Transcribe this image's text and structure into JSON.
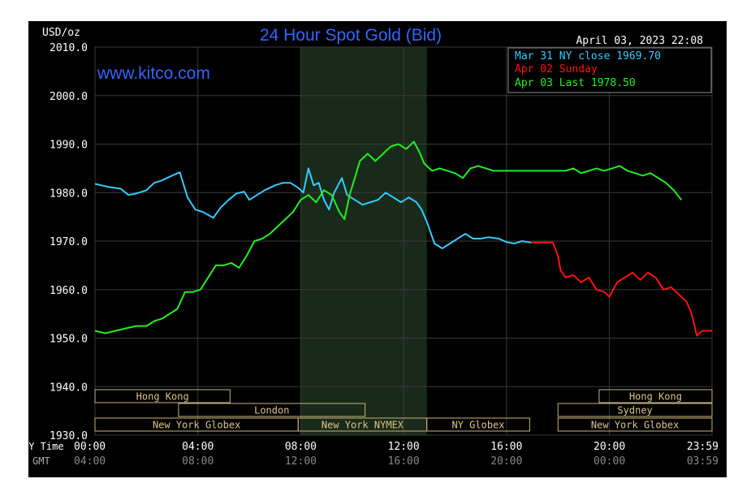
{
  "chart_data": {
    "type": "line",
    "title": "24 Hour Spot Gold (Bid)",
    "timestamp": "April 03, 2023 22:08",
    "watermark": "www.kitco.com",
    "ylabel": "USD/oz",
    "ylim": [
      1930,
      2010
    ],
    "y_ticks": [
      "2010.0",
      "2000.0",
      "1990.0",
      "1980.0",
      "1970.0",
      "1960.0",
      "1950.0",
      "1940.0",
      "1930.0"
    ],
    "x_row_label": "NY Time",
    "x_ticks": [
      "00:00",
      "04:00",
      "08:00",
      "12:00",
      "16:00",
      "20:00",
      "23:59"
    ],
    "gmt_row_label": "GMT",
    "gmt_ticks": [
      "04:00",
      "08:00",
      "12:00",
      "16:00",
      "20:00",
      "00:00",
      "03:59"
    ],
    "legend": [
      {
        "text": "Mar 31 NY close 1969.70",
        "color": "#33ccff"
      },
      {
        "text": "Apr 02 Sunday",
        "color": "#ff1111"
      },
      {
        "text": "Apr 03 Last 1978.50",
        "color": "#22ee22"
      }
    ],
    "sessions": [
      {
        "label": "Hong Kong",
        "row": 0,
        "start": 0,
        "end": 5.25
      },
      {
        "label": "Hong Kong",
        "row": 0,
        "start": 19.6,
        "end": 23.99
      },
      {
        "label": "London",
        "row": 1,
        "start": 3.25,
        "end": 10.5
      },
      {
        "label": "Sydney",
        "row": 1,
        "start": 18.0,
        "end": 23.99
      },
      {
        "label": "New York Globex",
        "row": 2,
        "start": 0,
        "end": 7.9
      },
      {
        "label": "New York NYMEX",
        "row": 2,
        "start": 7.9,
        "end": 12.9
      },
      {
        "label": "NY Globex",
        "row": 2,
        "start": 12.9,
        "end": 16.9
      },
      {
        "label": "New York Globex",
        "row": 2,
        "start": 18.0,
        "end": 23.99
      }
    ],
    "highlight": {
      "start": 8.0,
      "end": 12.9
    },
    "series": [
      {
        "name": "Mar 31 NY close 1969.70",
        "color": "#33ccff",
        "x": [
          0,
          0.5,
          1,
          1.3,
          1.6,
          2,
          2.3,
          2.6,
          3,
          3.3,
          3.6,
          3.9,
          4.2,
          4.6,
          4.9,
          5.2,
          5.5,
          5.8,
          6,
          6.3,
          6.6,
          7,
          7.3,
          7.6,
          7.9,
          8.1,
          8.3,
          8.5,
          8.7,
          8.9,
          9.1,
          9.3,
          9.6,
          9.8,
          10.1,
          10.4,
          10.7,
          11,
          11.3,
          11.6,
          11.9,
          12.2,
          12.5,
          12.7,
          12.9,
          13.2,
          13.5,
          13.8,
          14.1,
          14.4,
          14.7,
          15,
          15.3,
          15.7,
          16,
          16.3,
          16.6,
          16.95
        ],
        "y": [
          1981.8,
          1981.2,
          1980.8,
          1979.5,
          1979.8,
          1980.5,
          1982.0,
          1982.5,
          1983.5,
          1984.2,
          1979.0,
          1976.5,
          1976.0,
          1974.8,
          1977.0,
          1978.5,
          1979.8,
          1980.2,
          1978.5,
          1979.5,
          1980.5,
          1981.5,
          1982.0,
          1982.0,
          1981.0,
          1980.0,
          1985.0,
          1981.5,
          1982.0,
          1978.5,
          1976.5,
          1980.0,
          1983.0,
          1979.5,
          1978.5,
          1977.5,
          1978.0,
          1978.5,
          1980.0,
          1979.0,
          1978.0,
          1979.0,
          1978.0,
          1976.5,
          1974.0,
          1969.5,
          1968.5,
          1969.5,
          1970.5,
          1971.5,
          1970.5,
          1970.5,
          1970.8,
          1970.5,
          1969.8,
          1969.5,
          1970.0,
          1969.7
        ]
      },
      {
        "name": "Apr 02 Sunday",
        "color": "#ff1111",
        "x": [
          16.95,
          17.8,
          18.0,
          18.1,
          18.3,
          18.6,
          18.9,
          19.2,
          19.5,
          19.8,
          20.0,
          20.3,
          20.6,
          20.9,
          21.2,
          21.5,
          21.8,
          22.1,
          22.4,
          22.7,
          23.0,
          23.2,
          23.4,
          23.6,
          23.99
        ],
        "y": [
          1969.7,
          1969.7,
          1967.0,
          1964.0,
          1962.5,
          1963.0,
          1961.5,
          1962.5,
          1960.0,
          1959.5,
          1958.5,
          1961.5,
          1962.5,
          1963.5,
          1962.0,
          1963.5,
          1962.5,
          1960.0,
          1960.5,
          1959.0,
          1957.5,
          1955.0,
          1950.5,
          1951.5,
          1951.5
        ]
      },
      {
        "name": "Apr 03 Last 1978.50",
        "color": "#22ee22",
        "x": [
          0,
          0.4,
          0.8,
          1.2,
          1.6,
          2,
          2.3,
          2.6,
          2.9,
          3.2,
          3.5,
          3.8,
          4.1,
          4.4,
          4.7,
          5,
          5.3,
          5.6,
          5.9,
          6.2,
          6.5,
          6.8,
          7.1,
          7.4,
          7.7,
          8,
          8.3,
          8.6,
          8.9,
          9.2,
          9.5,
          9.7,
          9.9,
          10.1,
          10.3,
          10.6,
          10.9,
          11.2,
          11.5,
          11.8,
          12.1,
          12.4,
          12.6,
          12.8,
          13.1,
          13.4,
          13.7,
          14,
          14.3,
          14.6,
          14.9,
          15.2,
          15.5,
          15.8,
          16.1,
          16.5,
          17,
          17.5,
          18,
          18.3,
          18.6,
          18.9,
          19.2,
          19.5,
          19.8,
          20.1,
          20.4,
          20.7,
          21,
          21.3,
          21.6,
          21.9,
          22.2,
          22.5,
          22.8
        ],
        "y": [
          1951.5,
          1951.0,
          1951.5,
          1952.0,
          1952.5,
          1952.5,
          1953.5,
          1954.0,
          1955.0,
          1956.0,
          1959.5,
          1959.5,
          1960.0,
          1962.5,
          1965.0,
          1965.0,
          1965.5,
          1964.5,
          1967.0,
          1970.0,
          1970.5,
          1971.5,
          1973.0,
          1974.5,
          1976.0,
          1978.5,
          1979.5,
          1978.0,
          1980.5,
          1979.5,
          1976.0,
          1974.5,
          1979.5,
          1983.0,
          1986.5,
          1988.0,
          1986.5,
          1988.0,
          1989.5,
          1990.0,
          1989.0,
          1990.5,
          1988.5,
          1986.0,
          1984.5,
          1985.0,
          1984.5,
          1984.0,
          1983.0,
          1985.0,
          1985.5,
          1985.0,
          1984.5,
          1984.5,
          1984.5,
          1984.5,
          1984.5,
          1984.5,
          1984.5,
          1984.5,
          1985.0,
          1984.0,
          1984.5,
          1985.0,
          1984.5,
          1985.0,
          1985.5,
          1984.5,
          1984.0,
          1983.5,
          1984.0,
          1983.0,
          1982.0,
          1980.5,
          1978.5
        ]
      }
    ]
  }
}
